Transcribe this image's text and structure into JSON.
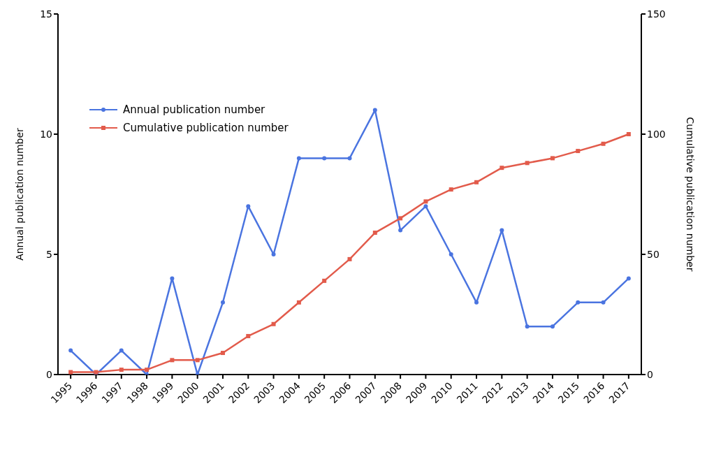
{
  "chart_data": {
    "type": "line",
    "xlabel": null,
    "ylabel": "Annual publication number",
    "y2label": "Cumulative publication number",
    "categories": [
      "1995",
      "1996",
      "1997",
      "1998",
      "1999",
      "2000",
      "2001",
      "2002",
      "2003",
      "2004",
      "2005",
      "2006",
      "2007",
      "2008",
      "2009",
      "2010",
      "2011",
      "2012",
      "2013",
      "2014",
      "2015",
      "2016",
      "2017"
    ],
    "series": [
      {
        "name": "Annual publication number",
        "color": "#4a74e0",
        "marker": "circle",
        "values": [
          1,
          0,
          1,
          0,
          4,
          0,
          3,
          7,
          5,
          9,
          9,
          9,
          11,
          6,
          7,
          5,
          3,
          6,
          2,
          2,
          3,
          3,
          4
        ]
      },
      {
        "name": "Cumulative publication number",
        "color": "#e25b4b",
        "marker": "square",
        "axis": "y2",
        "values": [
          1,
          1,
          2,
          2,
          6,
          6,
          9,
          16,
          21,
          30,
          39,
          48,
          59,
          65,
          72,
          77,
          80,
          86,
          88,
          90,
          93,
          96,
          100
        ]
      }
    ],
    "ylim": [
      0,
      15
    ],
    "yticks": [
      0,
      5,
      10,
      15
    ],
    "y2lim": [
      0,
      150
    ],
    "y2ticks": [
      0,
      50,
      100,
      150
    ],
    "grid": false,
    "legend": "top left",
    "line_style": "solid"
  }
}
